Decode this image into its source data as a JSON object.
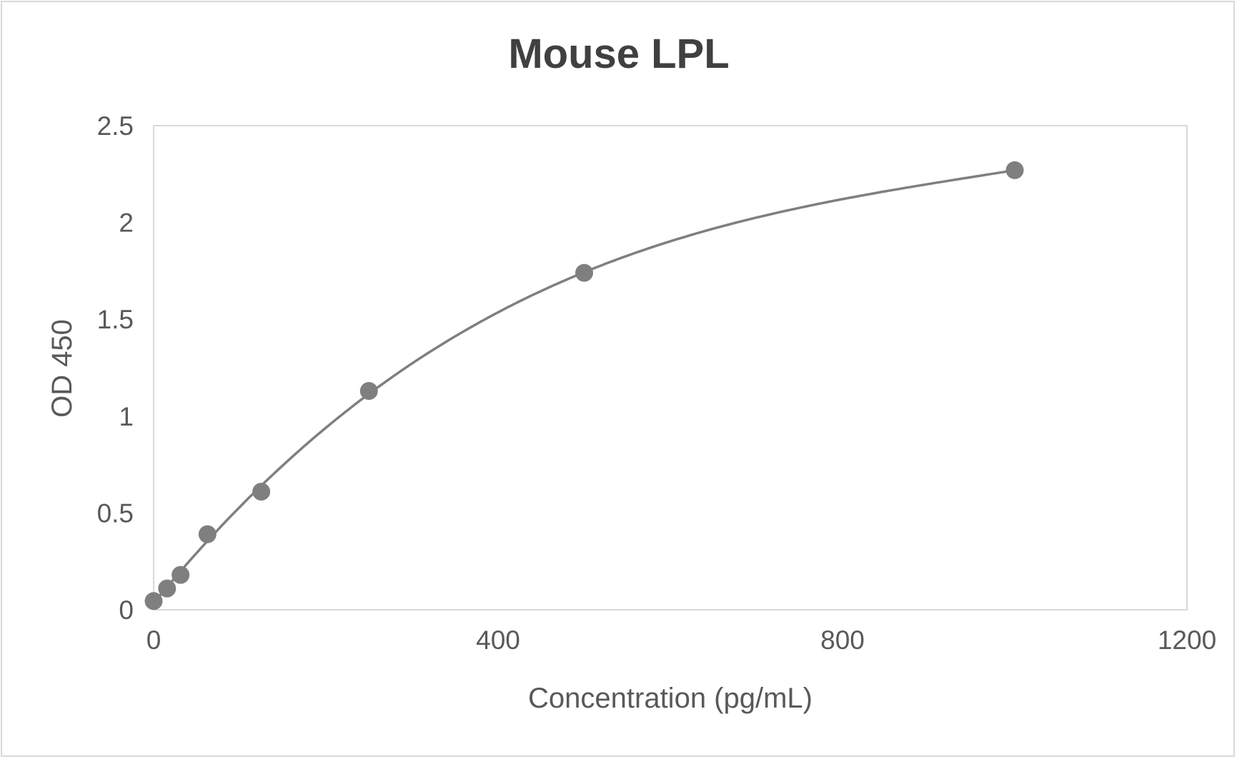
{
  "chart_data": {
    "type": "scatter",
    "title": "Mouse LPL",
    "xlabel": "Concentration (pg/mL)",
    "ylabel": "OD 450",
    "xlim": [
      0,
      1200
    ],
    "ylim": [
      0,
      2.5
    ],
    "xticks": [
      "0",
      "400",
      "800",
      "1200"
    ],
    "yticks": [
      "0",
      "0.5",
      "1",
      "1.5",
      "2",
      "2.5"
    ],
    "grid": false,
    "legend": "none",
    "trendline": "polynomial",
    "marker_color": "#7f7f7f",
    "line_color": "#7f7f7f",
    "series": [
      {
        "x": [
          0,
          15.6,
          31.25,
          62.5,
          125,
          250,
          500,
          1000
        ],
        "y": [
          0.045,
          0.11,
          0.18,
          0.39,
          0.61,
          1.13,
          1.74,
          2.27
        ]
      }
    ]
  }
}
